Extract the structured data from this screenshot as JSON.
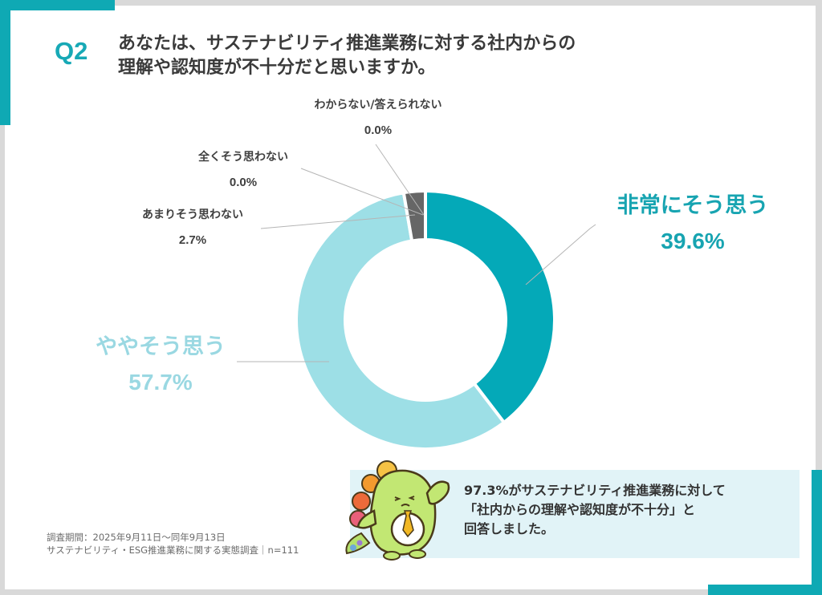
{
  "header": {
    "question_number": "Q2",
    "question_line1": "あなたは、サステナビリティ推進業務に対する社内からの",
    "question_line2": "理解や認知度が不十分だと思いますか。"
  },
  "colors": {
    "accent": "#0fa9b4",
    "very_much": "#04a9b8",
    "somewhat": "#9ddfe6",
    "not_much": "#666666",
    "label_dark": "#17a4b1",
    "label_light": "#9ad8e2",
    "callout_bg": "#e1f3f7"
  },
  "chart_data": {
    "type": "pie",
    "subtype": "donut",
    "title": "あなたは、サステナビリティ推進業務に対する社内からの理解や認知度が不十分だと思いますか。",
    "categories": [
      "非常にそう思う",
      "ややそう思う",
      "あまりそう思わない",
      "全くそう思わない",
      "わからない/答えられない"
    ],
    "values": [
      39.6,
      57.7,
      2.7,
      0.0,
      0.0
    ],
    "unit": "%",
    "start_angle": "12 o'clock, clockwise",
    "legend": "none (leader-line labels)",
    "n": 111
  },
  "labels": {
    "very_much": {
      "name": "非常にそう思う",
      "pct": "39.6%"
    },
    "somewhat": {
      "name": "ややそう思う",
      "pct": "57.7%"
    },
    "not_much": {
      "name": "あまりそう思わない",
      "pct": "2.7%"
    },
    "not_at_all": {
      "name": "全くそう思わない",
      "pct": "0.0%"
    },
    "dont_know": {
      "name": "わからない/答えられない",
      "pct": "0.0%"
    }
  },
  "callout": {
    "line1": "97.3%がサステナビリティ推進業務に対して",
    "line2": "「社内からの理解や認知度が不十分」と",
    "line3": "回答しました。"
  },
  "footnote": {
    "period": "調査期間：2025年9月11日～同年9月13日",
    "survey": "サステナビリティ・ESG推進業務に関する実態調査｜n=111"
  }
}
